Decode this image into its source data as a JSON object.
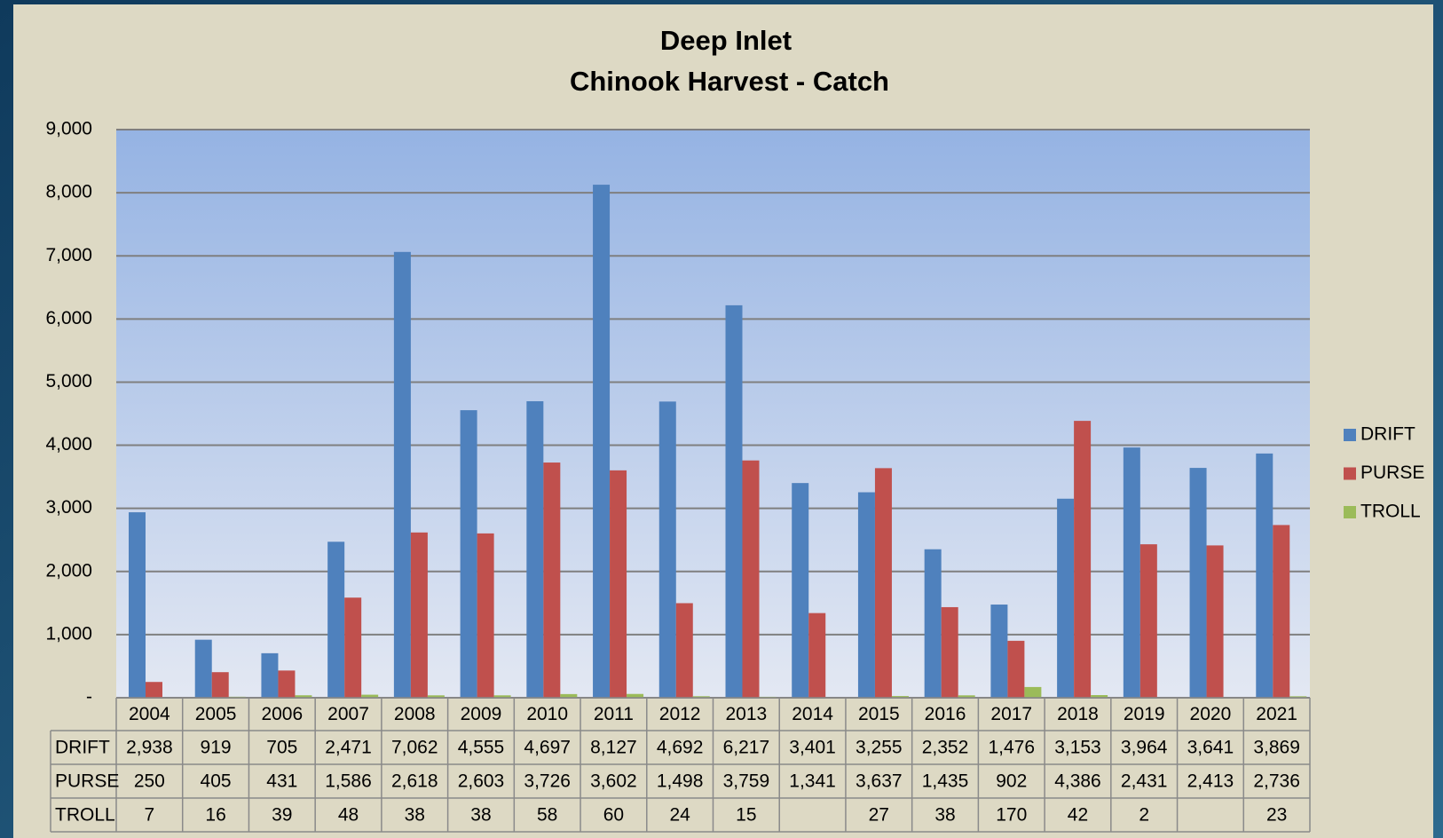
{
  "chart_data": {
    "type": "bar",
    "title": "Deep Inlet",
    "subtitle": "Chinook Harvest - Catch",
    "categories": [
      "2004",
      "2005",
      "2006",
      "2007",
      "2008",
      "2009",
      "2010",
      "2011",
      "2012",
      "2013",
      "2014",
      "2015",
      "2016",
      "2017",
      "2018",
      "2019",
      "2020",
      "2021"
    ],
    "series": [
      {
        "name": "DRIFT",
        "color": "#4f81bd",
        "values": [
          2938,
          919,
          705,
          2471,
          7062,
          4555,
          4697,
          8127,
          4692,
          6217,
          3401,
          3255,
          2352,
          1476,
          3153,
          3964,
          3641,
          3869
        ],
        "value_labels": [
          "2,938",
          "919",
          "705",
          "2,471",
          "7,062",
          "4,555",
          "4,697",
          "8,127",
          "4,692",
          "6,217",
          "3,401",
          "3,255",
          "2,352",
          "1,476",
          "3,153",
          "3,964",
          "3,641",
          "3,869"
        ]
      },
      {
        "name": "PURSE",
        "color": "#c0504d",
        "values": [
          250,
          405,
          431,
          1586,
          2618,
          2603,
          3726,
          3602,
          1498,
          3759,
          1341,
          3637,
          1435,
          902,
          4386,
          2431,
          2413,
          2736
        ],
        "value_labels": [
          "250",
          "405",
          "431",
          "1,586",
          "2,618",
          "2,603",
          "3,726",
          "3,602",
          "1,498",
          "3,759",
          "1,341",
          "3,637",
          "1,435",
          "902",
          "4,386",
          "2,431",
          "2,413",
          "2,736"
        ]
      },
      {
        "name": "TROLL",
        "color": "#9bbb59",
        "values": [
          7,
          16,
          39,
          48,
          38,
          38,
          58,
          60,
          24,
          15,
          null,
          27,
          38,
          170,
          42,
          2,
          null,
          23
        ],
        "value_labels": [
          "7",
          "16",
          "39",
          "48",
          "38",
          "38",
          "58",
          "60",
          "24",
          "15",
          null,
          "27",
          "38",
          "170",
          "42",
          "2",
          null,
          "23"
        ]
      }
    ],
    "ylim": [
      0,
      9000
    ],
    "yticks": [
      {
        "value": 0,
        "label": "-"
      },
      {
        "value": 1000,
        "label": "1,000"
      },
      {
        "value": 2000,
        "label": "2,000"
      },
      {
        "value": 3000,
        "label": "3,000"
      },
      {
        "value": 4000,
        "label": "4,000"
      },
      {
        "value": 5000,
        "label": "5,000"
      },
      {
        "value": 6000,
        "label": "6,000"
      },
      {
        "value": 7000,
        "label": "7,000"
      },
      {
        "value": 8000,
        "label": "8,000"
      },
      {
        "value": 9000,
        "label": "9,000"
      }
    ],
    "grid": true,
    "legend": "right"
  }
}
